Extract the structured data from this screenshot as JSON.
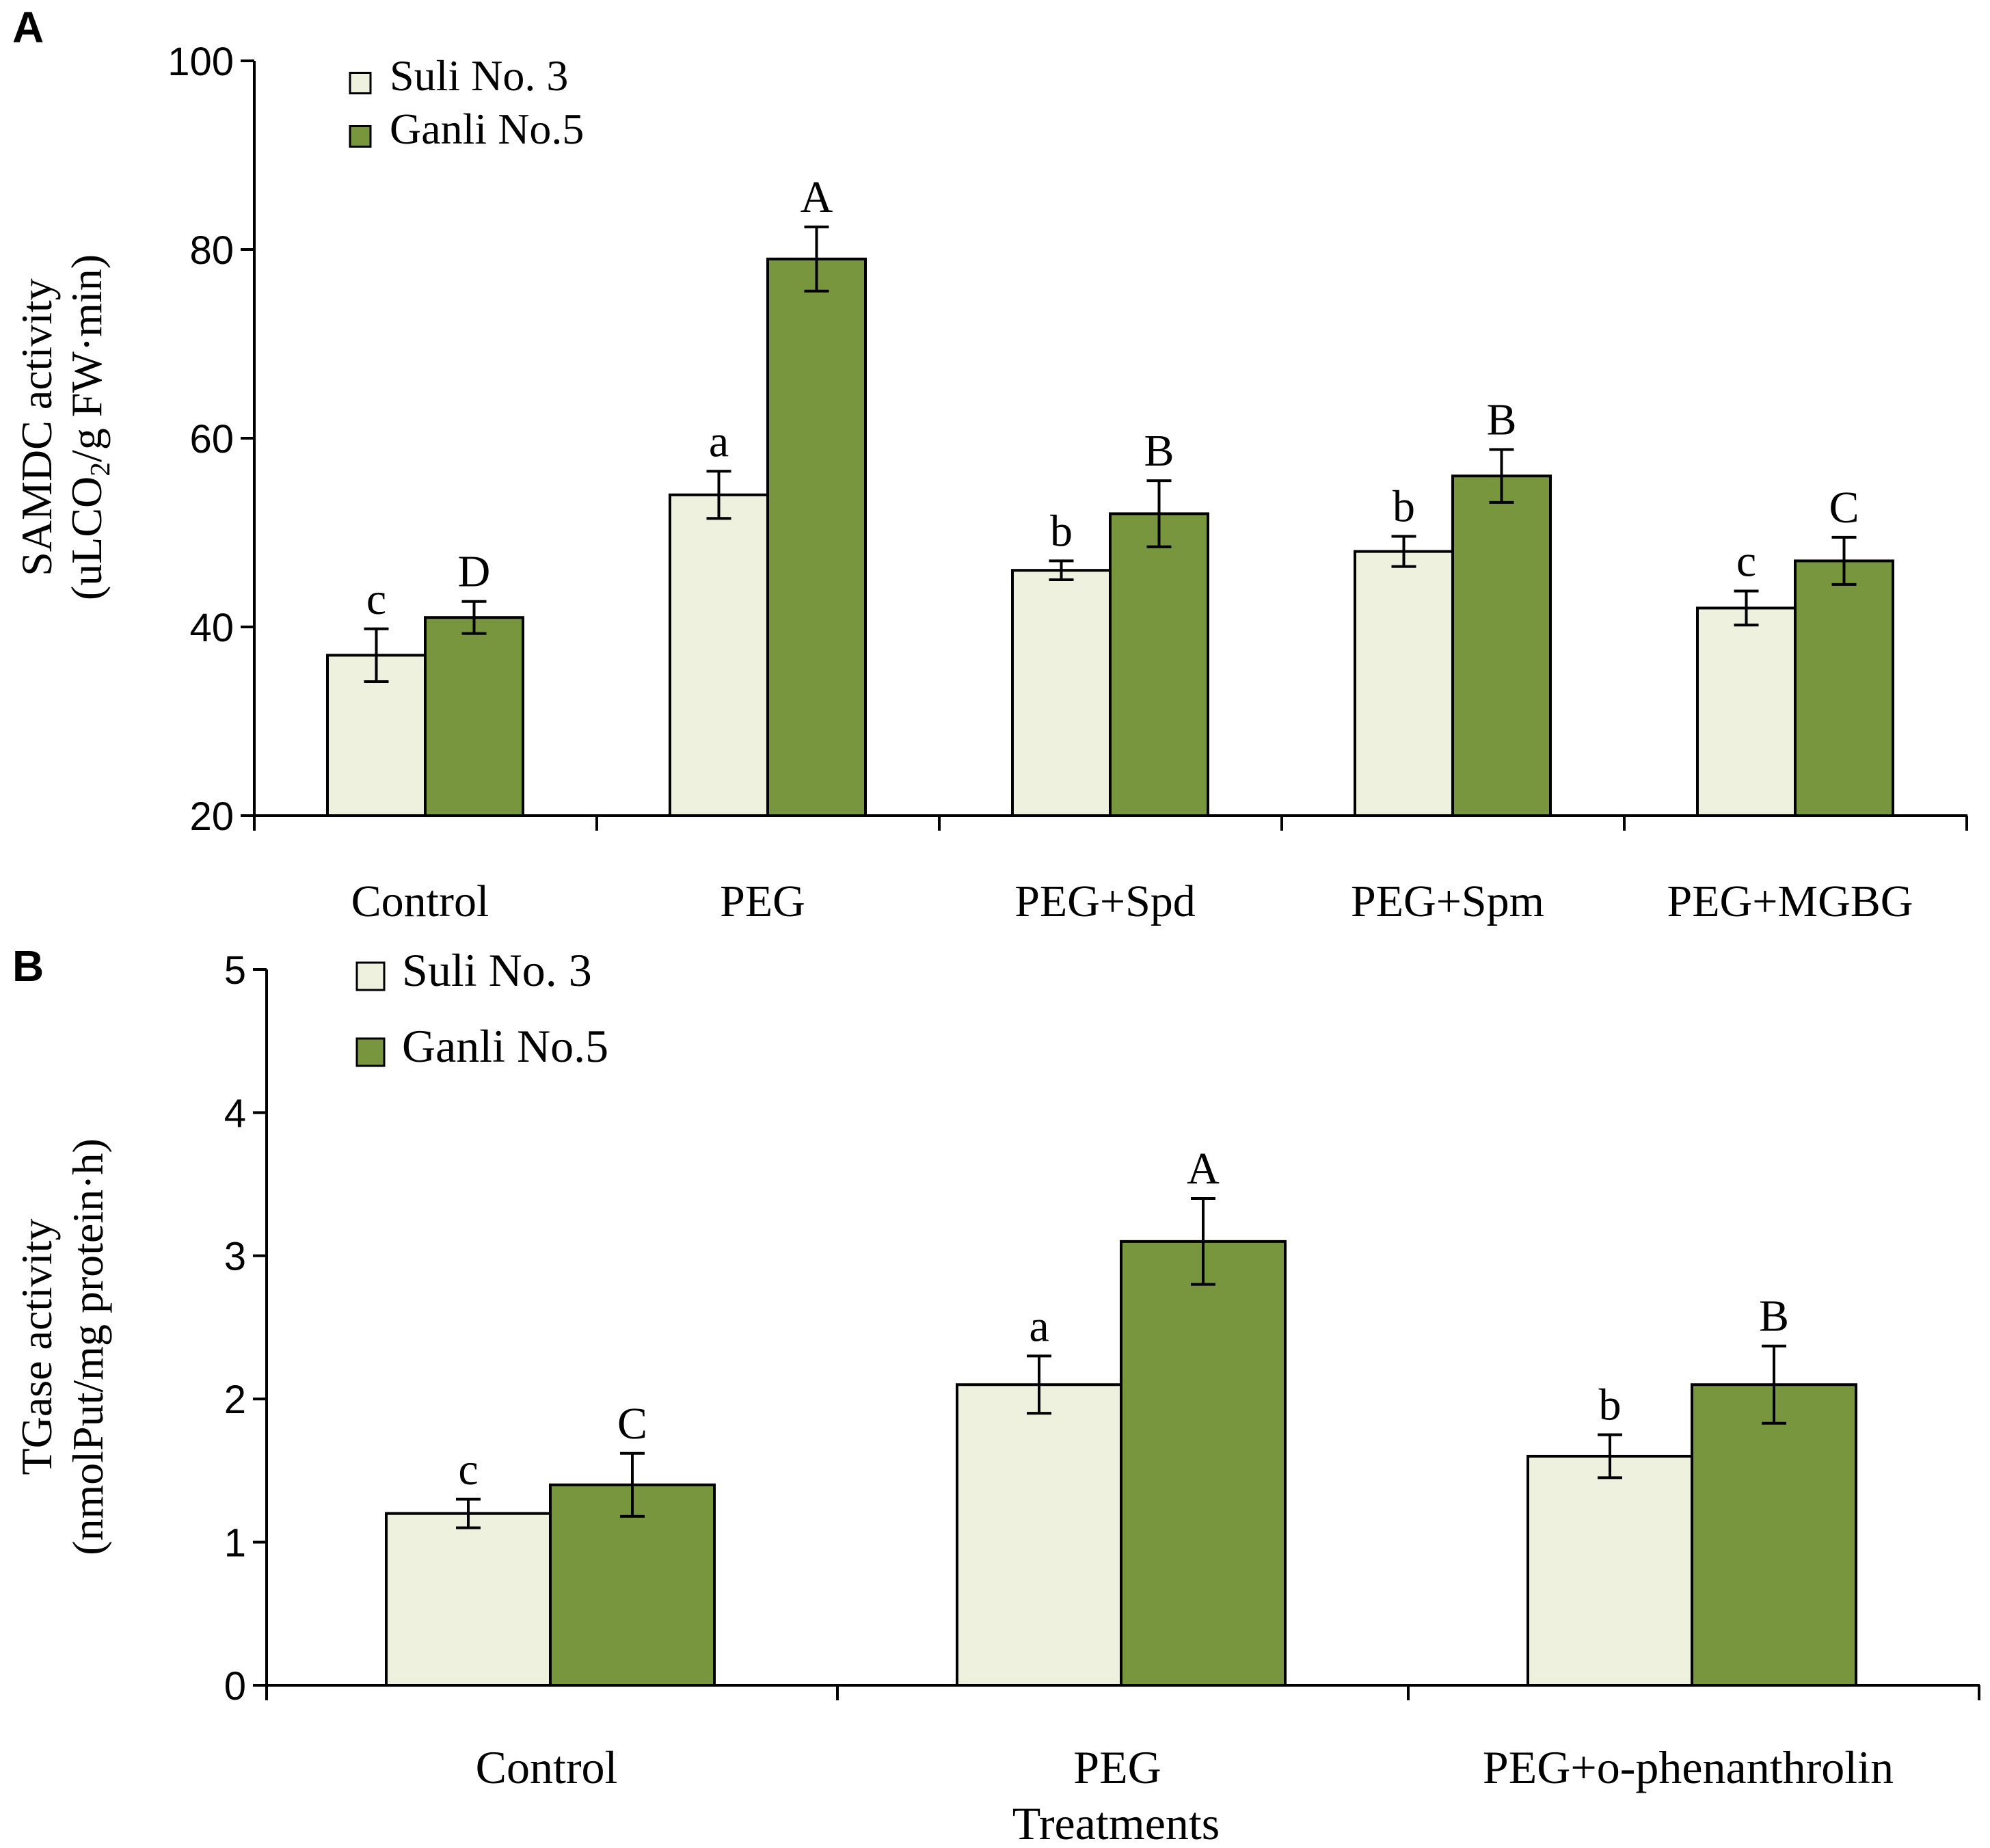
{
  "colors": {
    "series1": "#edf1dd",
    "series2": "#78963e",
    "stroke": "#000000"
  },
  "chart_data": [
    {
      "panel_label": "A",
      "type": "bar",
      "title": "",
      "xlabel": "",
      "ylabel_line1": "SAMDC activity",
      "ylabel_line2_pre": "(uLCO",
      "ylabel_line2_sub": "2",
      "ylabel_line2_post": "/g FW·min)",
      "ylim": [
        20,
        100
      ],
      "yticks": [
        20,
        40,
        60,
        80,
        100
      ],
      "categories": [
        "Control",
        "PEG",
        "PEG+Spd",
        "PEG+Spm",
        "PEG+MGBG"
      ],
      "legend_position": "top-left",
      "series": [
        {
          "name": "Suli No. 3",
          "values": [
            37,
            54,
            46,
            48,
            42
          ],
          "errors": [
            2.8,
            2.5,
            1.0,
            1.6,
            1.8
          ],
          "letters": [
            "c",
            "a",
            "b",
            "b",
            "c"
          ]
        },
        {
          "name": "Ganli No.5",
          "values": [
            41,
            79,
            52,
            56,
            47
          ],
          "errors": [
            1.7,
            3.4,
            3.5,
            2.8,
            2.5
          ],
          "letters": [
            "D",
            "A",
            "B",
            "B",
            "C"
          ]
        }
      ]
    },
    {
      "panel_label": "B",
      "type": "bar",
      "title": "",
      "xlabel": "Treatments",
      "ylabel_line1": "TGase activity",
      "ylabel_line2_pre": "(nmolPut/mg protein·h)",
      "ylabel_line2_sub": "",
      "ylabel_line2_post": "",
      "ylim": [
        0,
        5
      ],
      "yticks": [
        0,
        1,
        2,
        3,
        4,
        5
      ],
      "categories": [
        "Control",
        "PEG",
        "PEG+o-phenanthrolin"
      ],
      "legend_position": "top-left",
      "series": [
        {
          "name": "Suli No. 3",
          "values": [
            1.2,
            2.1,
            1.6
          ],
          "errors": [
            0.1,
            0.2,
            0.15
          ],
          "letters": [
            "c",
            "a",
            "b"
          ]
        },
        {
          "name": "Ganli No.5",
          "values": [
            1.4,
            3.1,
            2.1
          ],
          "errors": [
            0.22,
            0.3,
            0.27
          ],
          "letters": [
            "C",
            "A",
            "B"
          ]
        }
      ]
    }
  ]
}
